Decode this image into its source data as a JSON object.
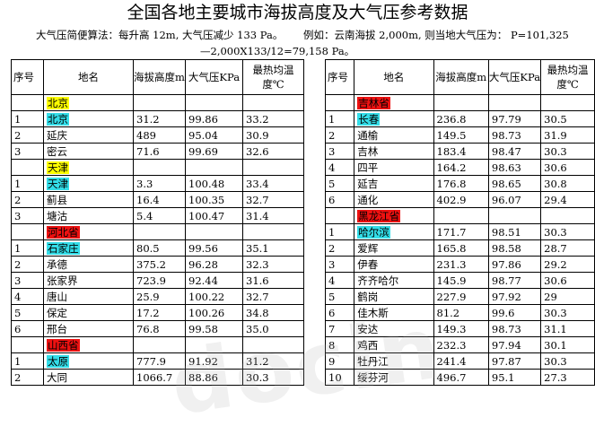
{
  "title": "全国各地主要城市海拔高度及大气压参考数据",
  "note": {
    "calc": "大气压简便算法：每升高 12m, 大气压减少 133 Pa。",
    "example": "例如：云南海拔 2,000m, 则当地大气压为： P=101,325",
    "example_cont": "—2,000X133/12=79,158 Pa。"
  },
  "headers": {
    "no": "序号",
    "place": "地名",
    "altitude": "海拔高度m",
    "pressure": "大气压KPa",
    "hottest": "最热均温度℃"
  },
  "left_rows": [
    {
      "group": "北京",
      "hl": "y"
    },
    {
      "no": "1",
      "place": "北京",
      "hl": "c",
      "alt": "31.2",
      "kpa": "99.86",
      "temp": "33.2"
    },
    {
      "no": "2",
      "place": "延庆",
      "alt": "489",
      "kpa": "95.04",
      "temp": "30.9"
    },
    {
      "no": "3",
      "place": "密云",
      "alt": "71.6",
      "kpa": "99.69",
      "temp": "32.6"
    },
    {
      "group": "天津",
      "hl": "y"
    },
    {
      "no": "1",
      "place": "天津",
      "hl": "c",
      "alt": "3.3",
      "kpa": "100.48",
      "temp": "33.4"
    },
    {
      "no": "2",
      "place": "蓟县",
      "alt": "16.4",
      "kpa": "100.35",
      "temp": "32.7"
    },
    {
      "no": "3",
      "place": "塘沽",
      "alt": "5.4",
      "kpa": "100.47",
      "temp": "31.4"
    },
    {
      "group": "河北省",
      "hl": "r"
    },
    {
      "no": "1",
      "place": "石家庄",
      "hl": "c",
      "alt": "80.5",
      "kpa": "99.56",
      "temp": "35.1"
    },
    {
      "no": "2",
      "place": "承德",
      "alt": "375.2",
      "kpa": "96.28",
      "temp": "32.3"
    },
    {
      "no": "3",
      "place": "张家界",
      "alt": "723.9",
      "kpa": "92.44",
      "temp": "31.6"
    },
    {
      "no": "4",
      "place": "唐山",
      "alt": "25.9",
      "kpa": "100.22",
      "temp": "32.7"
    },
    {
      "no": "5",
      "place": "保定",
      "alt": "17.2",
      "kpa": "100.26",
      "temp": "34.8"
    },
    {
      "no": "6",
      "place": "邢台",
      "alt": "76.8",
      "kpa": "99.58",
      "temp": "35.0"
    },
    {
      "group": "山西省",
      "hl": "r"
    },
    {
      "no": "1",
      "place": "太原",
      "hl": "c",
      "alt": "777.9",
      "kpa": "91.92",
      "temp": "31.2"
    },
    {
      "no": "2",
      "place": "大同",
      "alt": "1066.7",
      "kpa": "88.86",
      "temp": "30.3"
    }
  ],
  "right_rows": [
    {
      "group": "吉林省",
      "hl": "r"
    },
    {
      "no": "1",
      "place": "长春",
      "hl": "c",
      "alt": "236.8",
      "kpa": "97.79",
      "temp": "30.5"
    },
    {
      "no": "2",
      "place": "通榆",
      "alt": "149.5",
      "kpa": "98.73",
      "temp": "31.9"
    },
    {
      "no": "3",
      "place": "吉林",
      "alt": "183.4",
      "kpa": "98.47",
      "temp": "30.3"
    },
    {
      "no": "4",
      "place": "四平",
      "alt": "164.2",
      "kpa": "98.63",
      "temp": "30.6"
    },
    {
      "no": "5",
      "place": "延吉",
      "alt": "176.8",
      "kpa": "98.65",
      "temp": "30.8"
    },
    {
      "no": "6",
      "place": "通化",
      "alt": "402.9",
      "kpa": "96.07",
      "temp": "29.4"
    },
    {
      "group": "黑龙江省",
      "hl": "r"
    },
    {
      "no": "1",
      "place": "哈尔滨",
      "hl": "c",
      "alt": "171.7",
      "kpa": "98.51",
      "temp": "30.3"
    },
    {
      "no": "2",
      "place": "爱辉",
      "alt": "165.8",
      "kpa": "98.58",
      "temp": "28.7"
    },
    {
      "no": "3",
      "place": "伊春",
      "alt": "231.3",
      "kpa": "97.86",
      "temp": "29.2"
    },
    {
      "no": "4",
      "place": "齐齐哈尔",
      "alt": "145.9",
      "kpa": "98.77",
      "temp": "30.6"
    },
    {
      "no": "5",
      "place": "鹤岗",
      "alt": "227.9",
      "kpa": "97.92",
      "temp": "29"
    },
    {
      "no": "6",
      "place": "佳木斯",
      "alt": "81.2",
      "kpa": "99.6",
      "temp": "30.3"
    },
    {
      "no": "7",
      "place": "安达",
      "alt": "149.3",
      "kpa": "98.73",
      "temp": "31.1"
    },
    {
      "no": "8",
      "place": "鸡西",
      "alt": "232.3",
      "kpa": "97.94",
      "temp": "30.1"
    },
    {
      "no": "9",
      "place": "牡丹江",
      "alt": "241.4",
      "kpa": "97.87",
      "temp": "30.3"
    },
    {
      "no": "10",
      "place": "绥芬河",
      "alt": "496.7",
      "kpa": "95.1",
      "temp": "27.3"
    }
  ],
  "watermark": "docin",
  "colors": {
    "yellow": "#ffff00",
    "cyan": "#33dde8",
    "red": "#ee1111"
  }
}
